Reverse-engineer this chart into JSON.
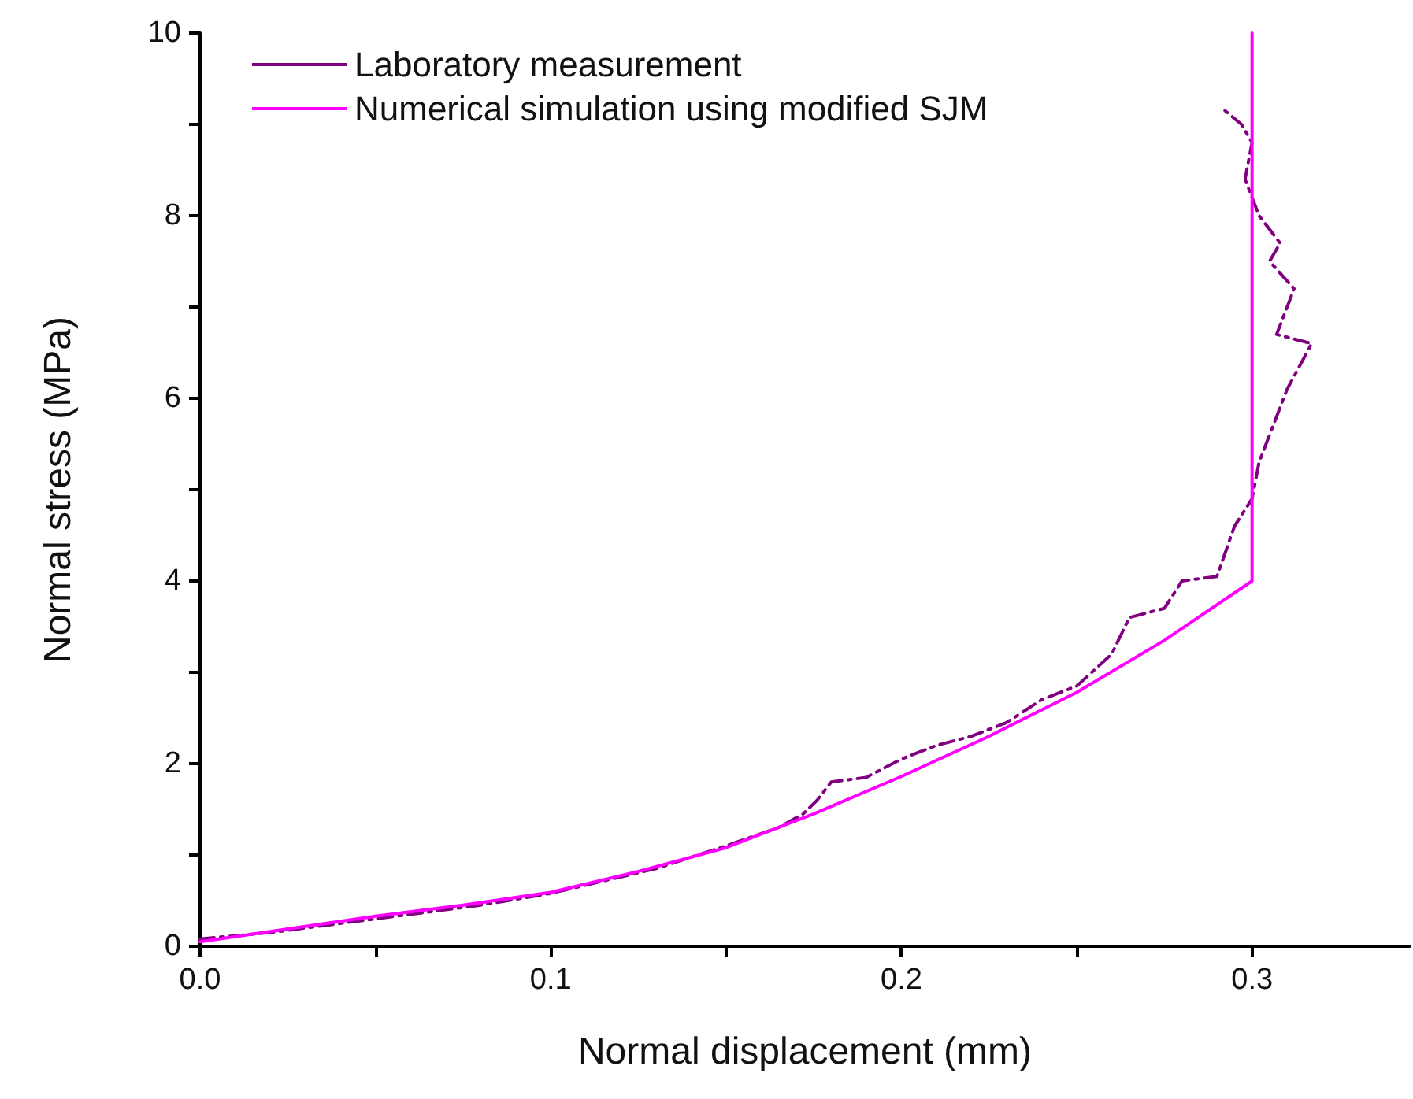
{
  "chart_data": {
    "type": "line",
    "xlabel": "Normal displacement (mm)",
    "ylabel": "Normal stress (MPa)",
    "xlim": [
      0,
      0.345
    ],
    "xticks": [
      {
        "value": 0,
        "label": "0.0"
      },
      {
        "value": 0.05,
        "label": null
      },
      0.1,
      {
        "value": 0.15,
        "label": null
      },
      0.2,
      {
        "value": 0.25,
        "label": null
      },
      0.3
    ],
    "ylim": [
      0,
      10
    ],
    "yticks": [
      0,
      {
        "value": 1,
        "label": null
      },
      2,
      {
        "value": 3,
        "label": null
      },
      4,
      {
        "value": 5,
        "label": null
      },
      6,
      {
        "value": 7,
        "label": null
      },
      8,
      {
        "value": 9,
        "label": null
      },
      10
    ],
    "grid": false,
    "legend": "top left",
    "marker": "none",
    "series": [
      {
        "name": "Laboratory measurement",
        "color": "#800080",
        "line_style": "dashed",
        "x": [
          0,
          0.02,
          0.05,
          0.08,
          0.1,
          0.13,
          0.15,
          0.165,
          0.172,
          0.176,
          0.18,
          0.19,
          0.2,
          0.21,
          0.22,
          0.23,
          0.24,
          0.25,
          0.26,
          0.265,
          0.275,
          0.28,
          0.29,
          0.295,
          0.3,
          0.302,
          0.305,
          0.31,
          0.317,
          0.307,
          0.312,
          0.305,
          0.308,
          0.302,
          0.298,
          0.3,
          0.297,
          0.292
        ],
        "values": [
          0.08,
          0.15,
          0.3,
          0.45,
          0.58,
          0.85,
          1.1,
          1.3,
          1.45,
          1.6,
          1.8,
          1.85,
          2.05,
          2.2,
          2.3,
          2.45,
          2.7,
          2.85,
          3.2,
          3.6,
          3.7,
          4.0,
          4.05,
          4.6,
          4.9,
          5.3,
          5.6,
          6.1,
          6.6,
          6.7,
          7.2,
          7.5,
          7.7,
          8.0,
          8.4,
          8.8,
          9.0,
          9.16
        ]
      },
      {
        "name": "Numerical simulation using modified SJM",
        "color": "#ff00ff",
        "line_style": "solid",
        "x": [
          0,
          0.025,
          0.05,
          0.075,
          0.1,
          0.125,
          0.15,
          0.175,
          0.2,
          0.225,
          0.25,
          0.275,
          0.3,
          0.3
        ],
        "values": [
          0.05,
          0.19,
          0.33,
          0.45,
          0.59,
          0.82,
          1.08,
          1.45,
          1.86,
          2.3,
          2.78,
          3.35,
          4.0,
          10
        ]
      }
    ]
  }
}
